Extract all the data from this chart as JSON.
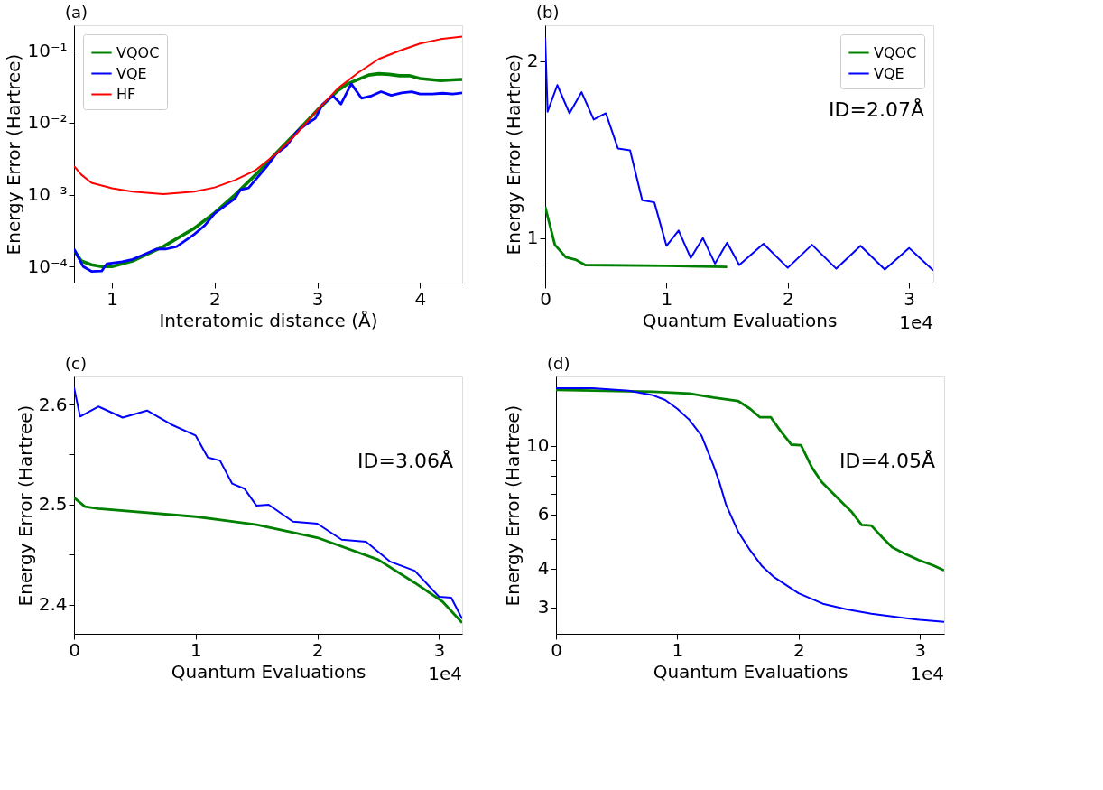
{
  "chart_data": [
    {
      "type": "line",
      "title": "(a)",
      "xlabel": "Interatomic distance (Å)",
      "ylabel": "Energy Error (Hartree)",
      "log": "y",
      "legend": "top left",
      "xlim": [
        0.63,
        4.41
      ],
      "xticks": [
        1,
        2,
        3,
        4
      ],
      "ylim": [
        6e-05,
        0.226
      ],
      "yticks": [
        {
          "value": 0.0001,
          "label": "10⁻⁴"
        },
        {
          "value": 0.001,
          "label": "10⁻³"
        },
        {
          "value": 0.01,
          "label": "10⁻²"
        },
        {
          "value": 0.1,
          "label": "10⁻¹"
        }
      ],
      "series": [
        {
          "name": "VQOC",
          "color": "#008000",
          "x": [
            0.63,
            0.7,
            0.8,
            0.9,
            1.0,
            1.2,
            1.5,
            1.8,
            2.0,
            2.2,
            2.4,
            2.6,
            2.8,
            3.0,
            3.2,
            3.3,
            3.4,
            3.5,
            3.6,
            3.7,
            3.8,
            3.9,
            4.0,
            4.2,
            4.41
          ],
          "values": [
            0.00017,
            0.00012,
            0.000106,
            0.0001,
            0.0001,
            0.00012,
            0.00019,
            0.00034,
            0.00056,
            0.001,
            0.0019,
            0.0038,
            0.0075,
            0.015,
            0.028,
            0.035,
            0.04,
            0.046,
            0.048,
            0.047,
            0.045,
            0.045,
            0.041,
            0.0385,
            0.04
          ]
        },
        {
          "name": "VQE",
          "color": "#0000ff",
          "x": [
            0.63,
            0.72,
            0.8,
            0.9,
            0.95,
            1.1,
            1.2,
            1.3,
            1.43,
            1.53,
            1.63,
            1.8,
            1.9,
            2.0,
            2.2,
            2.25,
            2.33,
            2.5,
            2.6,
            2.7,
            2.8,
            2.9,
            2.98,
            3.05,
            3.15,
            3.23,
            3.33,
            3.43,
            3.53,
            3.62,
            3.72,
            3.82,
            3.92,
            4.0,
            4.12,
            4.22,
            4.32,
            4.41
          ],
          "values": [
            0.000175,
            0.0001,
            8.6e-05,
            8.7e-05,
            0.00011,
            0.000117,
            0.000126,
            0.000145,
            0.000175,
            0.000176,
            0.00019,
            0.00028,
            0.00037,
            0.00055,
            0.00089,
            0.00117,
            0.00124,
            0.0024,
            0.0037,
            0.0048,
            0.0075,
            0.0097,
            0.0115,
            0.018,
            0.0237,
            0.0182,
            0.0347,
            0.0219,
            0.0237,
            0.027,
            0.024,
            0.026,
            0.027,
            0.025,
            0.025,
            0.0257,
            0.025,
            0.026
          ]
        },
        {
          "name": "HF",
          "color": "#ff0000",
          "x": [
            0.63,
            0.7,
            0.8,
            1.0,
            1.2,
            1.5,
            1.8,
            2.0,
            2.2,
            2.4,
            2.6,
            2.8,
            3.0,
            3.2,
            3.4,
            3.6,
            3.8,
            4.0,
            4.2,
            4.41
          ],
          "values": [
            0.0025,
            0.0019,
            0.00146,
            0.00123,
            0.0011,
            0.00102,
            0.0011,
            0.00126,
            0.0016,
            0.0022,
            0.0037,
            0.0071,
            0.015,
            0.03,
            0.05,
            0.077,
            0.1,
            0.126,
            0.145,
            0.158
          ]
        }
      ]
    },
    {
      "type": "line",
      "title": "(b)",
      "xlabel": "Quantum Evaluations",
      "ylabel": "Energy Error (Hartree)",
      "log": "y",
      "legend": "top right",
      "xlim": [
        0,
        3.2
      ],
      "xticks": [
        0,
        1,
        2,
        3
      ],
      "ylim": [
        0.84,
        2.3
      ],
      "yticks": [
        {
          "value": 0.9,
          "label": null
        },
        1,
        2
      ],
      "annotations": [
        "ID=2.07Å",
        "1e4"
      ],
      "series": [
        {
          "name": "VQOC",
          "color": "#008000",
          "x": [
            0,
            0.08,
            0.17,
            0.25,
            0.33,
            1.0,
            1.5
          ],
          "values": [
            1.13,
            0.974,
            0.928,
            0.919,
            0.9,
            0.897,
            0.893
          ]
        },
        {
          "name": "VQE",
          "color": "#0000ff",
          "x": [
            0,
            0.02,
            0.1,
            0.2,
            0.3,
            0.4,
            0.5,
            0.6,
            0.7,
            0.8,
            0.9,
            1.0,
            1.1,
            1.2,
            1.3,
            1.4,
            1.5,
            1.6,
            1.8,
            2.0,
            2.2,
            2.4,
            2.6,
            2.8,
            3.0,
            3.2
          ],
          "values": [
            2.19,
            1.64,
            1.82,
            1.63,
            1.77,
            1.59,
            1.63,
            1.42,
            1.41,
            1.16,
            1.15,
            0.97,
            1.03,
            0.925,
            1.0,
            0.905,
            0.982,
            0.9,
            0.978,
            0.89,
            0.974,
            0.887,
            0.97,
            0.884,
            0.962,
            0.881
          ]
        }
      ]
    },
    {
      "type": "line",
      "title": "(c)",
      "xlabel": "Quantum Evaluations",
      "ylabel": "Energy Error (Hartree)",
      "xlim": [
        0,
        3.19
      ],
      "xticks": [
        0,
        1,
        2,
        3
      ],
      "ylim": [
        2.371,
        2.628
      ],
      "yticks": [
        2.4,
        {
          "value": 2.45,
          "label": null
        },
        2.5,
        {
          "value": 2.55,
          "label": null
        },
        2.6
      ],
      "annotations": [
        "ID=3.06Å",
        "1e4"
      ],
      "series": [
        {
          "color": "#008000",
          "x": [
            0,
            0.09,
            0.2,
            1.0,
            1.5,
            2.0,
            2.5,
            2.8,
            3.03,
            3.19
          ],
          "values": [
            2.507,
            2.498,
            2.496,
            2.488,
            2.48,
            2.467,
            2.445,
            2.422,
            2.403,
            2.382
          ]
        },
        {
          "color": "#0000ff",
          "x": [
            0,
            0.05,
            0.2,
            0.4,
            0.6,
            0.8,
            1.0,
            1.1,
            1.2,
            1.3,
            1.4,
            1.5,
            1.6,
            1.8,
            2.0,
            2.2,
            2.4,
            2.6,
            2.8,
            3.0,
            3.1,
            3.19
          ],
          "values": [
            2.617,
            2.588,
            2.598,
            2.587,
            2.594,
            2.58,
            2.569,
            2.547,
            2.544,
            2.521,
            2.516,
            2.499,
            2.5,
            2.483,
            2.481,
            2.465,
            2.463,
            2.443,
            2.434,
            2.408,
            2.407,
            2.386
          ]
        }
      ]
    },
    {
      "type": "line",
      "title": "(d)",
      "xlabel": "Quantum Evaluations",
      "ylabel": "Energy Error (Hartree)",
      "log": "y",
      "xlim": [
        0,
        3.2
      ],
      "xticks": [
        0,
        1,
        2,
        3
      ],
      "ylim": [
        2.46,
        16.8
      ],
      "yticks": [
        3,
        4,
        {
          "value": 5,
          "label": null
        },
        6,
        {
          "value": 7,
          "label": null
        },
        {
          "value": 8,
          "label": null
        },
        {
          "value": 9,
          "label": null
        },
        10
      ],
      "annotations": [
        "ID=4.05Å",
        "1e4"
      ],
      "series": [
        {
          "color": "#008000",
          "x": [
            0,
            0.8,
            1.1,
            1.3,
            1.5,
            1.6,
            1.68,
            1.77,
            1.85,
            1.94,
            2.02,
            2.11,
            2.19,
            2.28,
            2.36,
            2.44,
            2.52,
            2.6,
            2.69,
            2.77,
            2.87,
            2.99,
            3.11,
            3.2
          ],
          "values": [
            15.2,
            15.0,
            14.8,
            14.35,
            14.0,
            13.2,
            12.4,
            12.4,
            11.2,
            10.1,
            10.05,
            8.51,
            7.65,
            7.04,
            6.55,
            6.1,
            5.55,
            5.52,
            5.05,
            4.7,
            4.48,
            4.27,
            4.1,
            3.95
          ]
        },
        {
          "color": "#0000ff",
          "x": [
            0,
            0.3,
            0.6,
            0.8,
            0.9,
            1.0,
            1.1,
            1.2,
            1.3,
            1.35,
            1.4,
            1.5,
            1.6,
            1.7,
            1.8,
            2.0,
            2.2,
            2.4,
            2.6,
            2.8,
            3.0,
            3.2
          ],
          "values": [
            15.4,
            15.4,
            15.1,
            14.6,
            14.1,
            13.2,
            12.15,
            10.8,
            8.61,
            7.56,
            6.48,
            5.29,
            4.59,
            4.07,
            3.75,
            3.33,
            3.08,
            2.95,
            2.86,
            2.79,
            2.73,
            2.69
          ]
        }
      ]
    }
  ]
}
